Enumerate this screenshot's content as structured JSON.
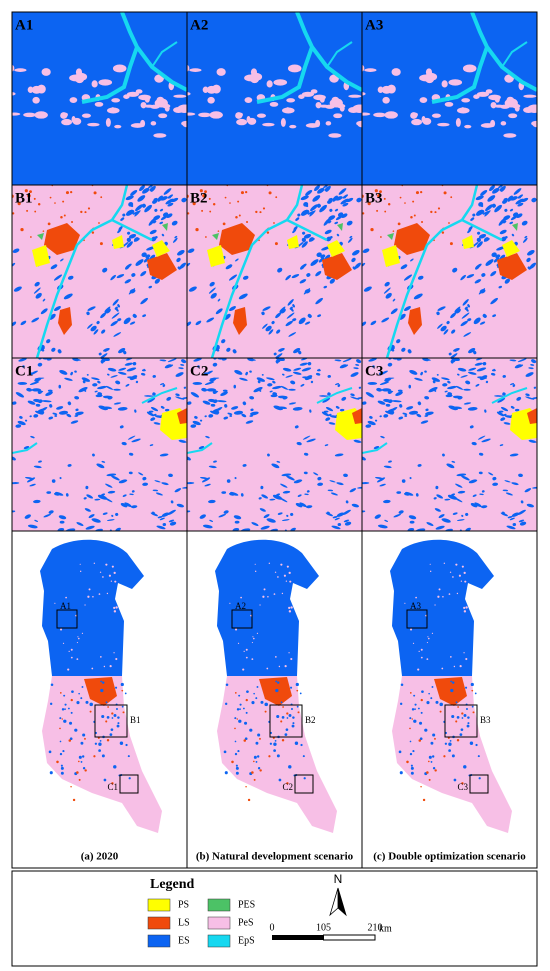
{
  "panels": {
    "row_a": [
      "A1",
      "A2",
      "A3"
    ],
    "row_b": [
      "B1",
      "B2",
      "B3"
    ],
    "row_c": [
      "C1",
      "C2",
      "C3"
    ]
  },
  "maps": [
    {
      "caption": "(a) 2020",
      "boxes": [
        "A1",
        "B1",
        "C1"
      ]
    },
    {
      "caption": "(b) Natural development scenario",
      "boxes": [
        "A2",
        "B2",
        "C2"
      ]
    },
    {
      "caption": "(c) Double optimization scenario",
      "boxes": [
        "A3",
        "B3",
        "C3"
      ]
    }
  ],
  "legend": {
    "title": "Legend",
    "items": [
      {
        "label": "PS",
        "color": "#ffff00"
      },
      {
        "label": "LS",
        "color": "#f04a0c"
      },
      {
        "label": "ES",
        "color": "#0c64f2"
      },
      {
        "label": "PES",
        "color": "#4cc266"
      },
      {
        "label": "PeS",
        "color": "#f7bfe6"
      },
      {
        "label": "EpS",
        "color": "#16d8f0"
      }
    ]
  },
  "north": "N",
  "scale_bar": {
    "ticks": [
      0,
      105,
      210
    ],
    "unit": "km"
  }
}
